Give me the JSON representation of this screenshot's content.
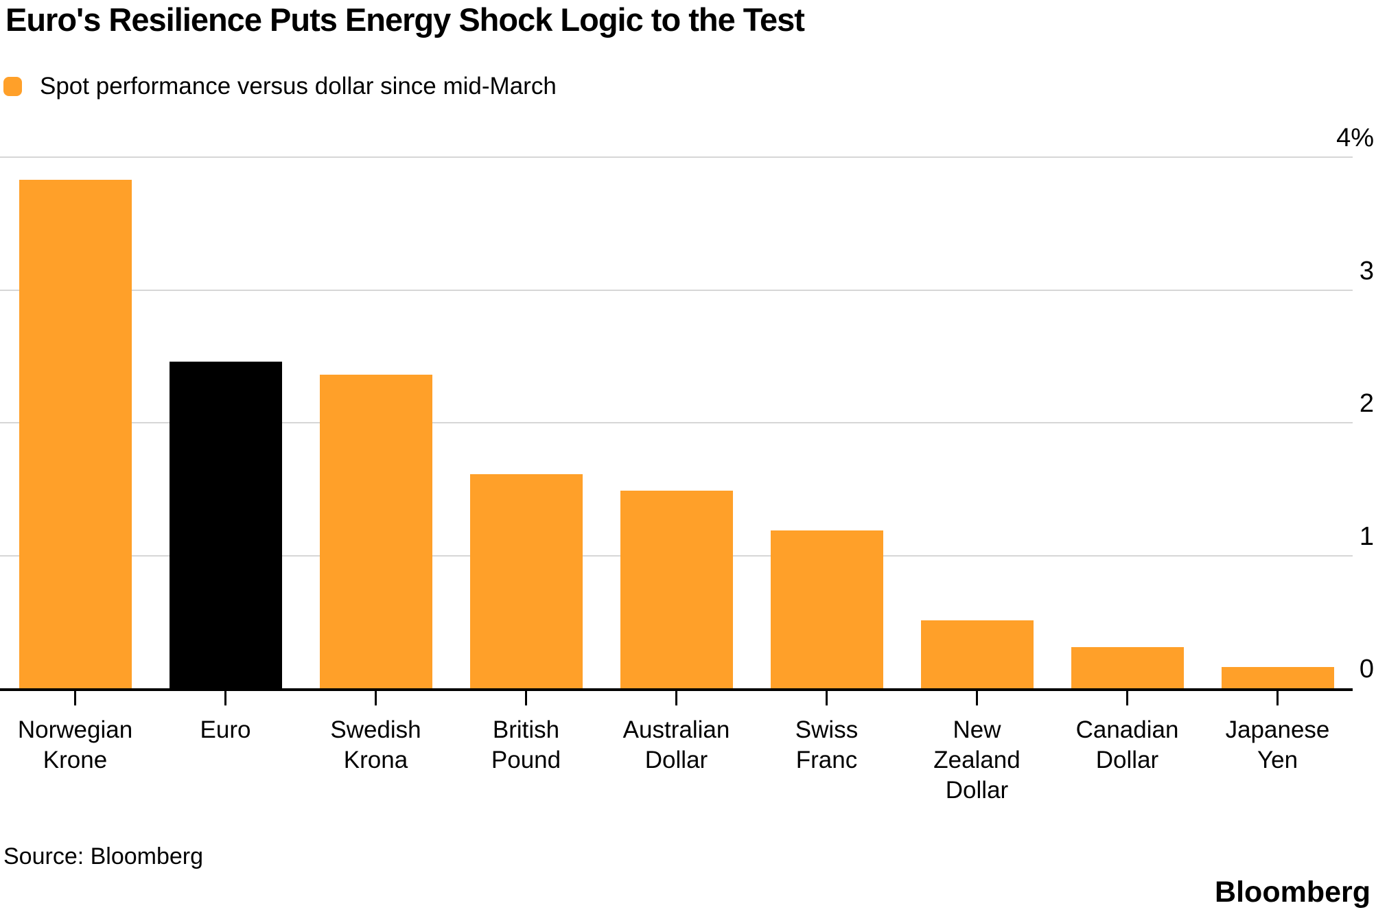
{
  "header": {
    "title": "Euro's Resilience Puts Energy Shock Logic to the Test",
    "legend": {
      "label": "Spot performance versus dollar since mid-March",
      "swatch_color": "#FFA029"
    }
  },
  "chart_data": {
    "type": "bar",
    "title": "Euro's Resilience Puts Energy Shock Logic to the Test",
    "legend_entries": [
      "Spot performance versus dollar since mid-March"
    ],
    "unit": "%",
    "categories": [
      "Norwegian Krone",
      "Euro",
      "Swedish Krona",
      "British Pound",
      "Australian Dollar",
      "Swiss Franc",
      "New Zealand Dollar",
      "Canadian Dollar",
      "Japanese Yen"
    ],
    "category_label_lines": [
      [
        "Norwegian",
        "Krone"
      ],
      [
        "Euro"
      ],
      [
        "Swedish",
        "Krona"
      ],
      [
        "British",
        "Pound"
      ],
      [
        "Australian",
        "Dollar"
      ],
      [
        "Swiss",
        "Franc"
      ],
      [
        "New",
        "Zealand",
        "Dollar"
      ],
      [
        "Canadian",
        "Dollar"
      ],
      [
        "Japanese",
        "Yen"
      ]
    ],
    "values": [
      3.83,
      2.46,
      2.36,
      1.61,
      1.49,
      1.19,
      0.51,
      0.31,
      0.16
    ],
    "ylim": [
      0,
      4
    ],
    "yticks": [
      4,
      3,
      2,
      1,
      0
    ],
    "ytick_labels": [
      "4%",
      "3",
      "2",
      "1",
      "0"
    ],
    "ytick_side": "right",
    "grid": "horizontal",
    "bar_color": "#FFA029",
    "highlight_index": 1,
    "highlight_color": "#000000",
    "gridline_color": "#d6d6d6",
    "axis_line_color": "#000000"
  },
  "footer": {
    "source": "Source: Bloomberg",
    "brand": "Bloomberg"
  }
}
